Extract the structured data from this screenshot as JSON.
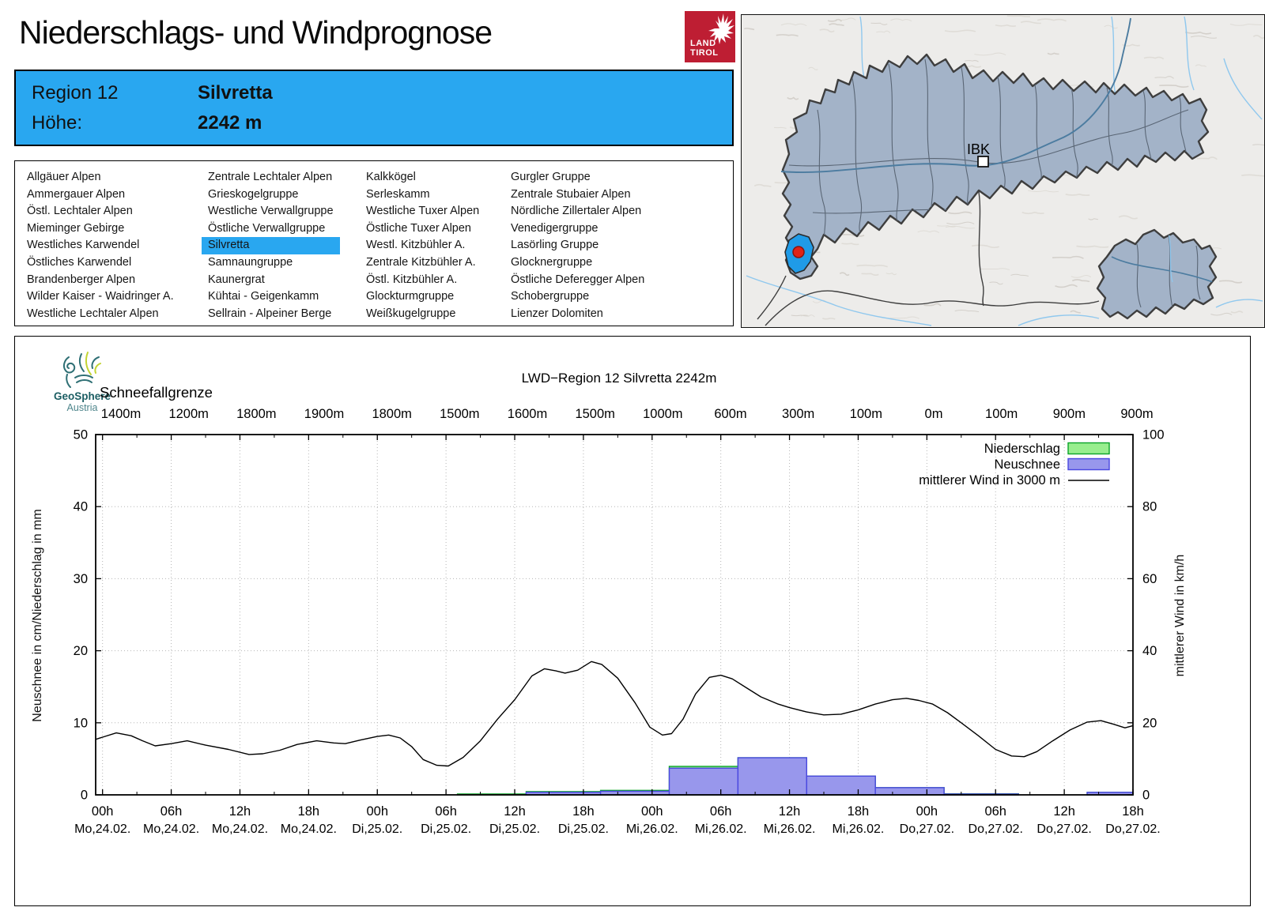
{
  "header": {
    "title": "Niederschlags- und Windprognose",
    "logo": {
      "line1": "LAND",
      "line2": "TIROL"
    }
  },
  "region_info": {
    "region_label": "Region 12",
    "region_name": "Silvretta",
    "altitude_label": "Höhe:",
    "altitude_value": "2242 m"
  },
  "region_list": {
    "selected": "Silvretta",
    "columns": [
      [
        "Allgäuer Alpen",
        "Ammergauer Alpen",
        "Östl. Lechtaler Alpen",
        "Mieminger Gebirge",
        "Westliches Karwendel",
        "Östliches Karwendel",
        "Brandenberger Alpen",
        "Wilder Kaiser - Waidringer A.",
        "Westliche Lechtaler Alpen"
      ],
      [
        "Zentrale Lechtaler Alpen",
        "Grieskogelgruppe",
        "Westliche Verwallgruppe",
        "Östliche Verwallgruppe",
        "Silvretta",
        "Samnaungruppe",
        "Kaunergrat",
        "Kühtai - Geigenkamm",
        "Sellrain - Alpeiner Berge"
      ],
      [
        "Kalkkögel",
        "Serleskamm",
        "Westliche Tuxer Alpen",
        "Östliche Tuxer Alpen",
        "Westl. Kitzbühler A.",
        "Zentrale Kitzbühler A.",
        "Östl. Kitzbühler A.",
        "Glockturmgruppe",
        "Weißkugelgruppe"
      ],
      [
        "Gurgler Gruppe",
        "Zentrale Stubaier Alpen",
        "Nördliche Zillertaler Alpen",
        "Venedigergruppe",
        "Lasörling Gruppe",
        "Glocknergruppe",
        "Östliche Deferegger Alpen",
        "Schobergruppe",
        "Lienzer Dolomiten"
      ]
    ]
  },
  "map": {
    "city_label": "IBK",
    "region_fill": "#a3b3c8",
    "highlight_color": "#1f9be8",
    "marker_color": "#e02318"
  },
  "brand": {
    "name": "GeoSphere",
    "sub": "Austria"
  },
  "chart_data": {
    "type": "mixed",
    "title": "LWD−Region 12 Silvretta 2242m",
    "x_axis": {
      "start": "Mo,24.02. 00h",
      "end": "Do,27.02. 18h",
      "domain_hours": [
        -0.6,
        90
      ],
      "tick_interval_hours": 6,
      "time_labels": [
        "00h",
        "06h",
        "12h",
        "18h",
        "00h",
        "06h",
        "12h",
        "18h",
        "00h",
        "06h",
        "12h",
        "18h",
        "00h",
        "06h",
        "12h",
        "18h"
      ],
      "date_labels": [
        "Mo,24.02.",
        "Mo,24.02.",
        "Mo,24.02.",
        "Mo,24.02.",
        "Di,25.02.",
        "Di,25.02.",
        "Di,25.02.",
        "Di,25.02.",
        "Mi,26.02.",
        "Mi,26.02.",
        "Mi,26.02.",
        "Mi,26.02.",
        "Do,27.02.",
        "Do,27.02.",
        "Do,27.02.",
        "Do,27.02."
      ]
    },
    "x2_axis": {
      "label": "Schneefallgrenze",
      "labels": [
        "1400m",
        "1200m",
        "1800m",
        "1900m",
        "1800m",
        "1500m",
        "1600m",
        "1500m",
        "1000m",
        "600m",
        "300m",
        "100m",
        "0m",
        "100m",
        "900m",
        "900m"
      ]
    },
    "y_left": {
      "label": "Neuschnee in cm/Niederschlag in mm",
      "range": [
        0,
        50
      ],
      "ticks": [
        0,
        10,
        20,
        30,
        40,
        50
      ]
    },
    "y_right": {
      "label": "mittlerer Wind in km/h",
      "range": [
        0,
        100
      ],
      "ticks": [
        0,
        20,
        40,
        60,
        80,
        100
      ]
    },
    "legend": [
      {
        "label": "Niederschlag",
        "swatch": "green-box"
      },
      {
        "label": "Neuschnee",
        "swatch": "blue-box"
      },
      {
        "label": "mittlerer Wind in 3000 m",
        "swatch": "line"
      }
    ],
    "grid": {
      "h_lines": [
        10,
        20,
        30,
        40
      ],
      "v_every_hours": 6,
      "style": "dotted"
    },
    "series": [
      {
        "name": "Niederschlag",
        "type": "bar",
        "unit": "mm",
        "axis": "left",
        "fill": "#98ee8e",
        "stroke": "#0aa428",
        "blocks": [
          [
            31,
            37,
            0.12
          ],
          [
            37,
            43.5,
            0.45
          ],
          [
            43.5,
            49.5,
            0.62
          ],
          [
            49.5,
            55.5,
            3.95
          ],
          [
            55.5,
            61.5,
            5.15
          ],
          [
            61.5,
            67.5,
            2.6
          ],
          [
            67.5,
            73.5,
            1.0
          ],
          [
            73.5,
            80,
            0.15
          ],
          [
            86,
            90,
            0.35
          ]
        ]
      },
      {
        "name": "Neuschnee",
        "type": "bar",
        "unit": "cm",
        "axis": "left",
        "fill": "#9897ec",
        "stroke": "#4a48e0",
        "blocks": [
          [
            37,
            43.5,
            0.35
          ],
          [
            43.5,
            49.5,
            0.5
          ],
          [
            49.5,
            55.5,
            3.7
          ],
          [
            55.5,
            61.5,
            5.15
          ],
          [
            61.5,
            67.5,
            2.6
          ],
          [
            67.5,
            73.5,
            1.0
          ],
          [
            73.5,
            80,
            0.12
          ],
          [
            86,
            90,
            0.35
          ]
        ]
      },
      {
        "name": "mittlerer Wind in 3000 m",
        "type": "line",
        "unit": "km/h",
        "axis": "right",
        "stroke": "#000000",
        "points": [
          [
            -0.6,
            15.4
          ],
          [
            0,
            16
          ],
          [
            1.2,
            17.2
          ],
          [
            2.5,
            16.4
          ],
          [
            3.5,
            15
          ],
          [
            4.6,
            13.6
          ],
          [
            6,
            14.2
          ],
          [
            7.4,
            15
          ],
          [
            9,
            13.8
          ],
          [
            11,
            12.6
          ],
          [
            12.8,
            11.2
          ],
          [
            14,
            11.4
          ],
          [
            15.5,
            12.4
          ],
          [
            17,
            14
          ],
          [
            18.7,
            15
          ],
          [
            20.2,
            14.4
          ],
          [
            21.2,
            14.2
          ],
          [
            22.5,
            15.2
          ],
          [
            24,
            16.2
          ],
          [
            25,
            16.6
          ],
          [
            26,
            15.8
          ],
          [
            27,
            13.4
          ],
          [
            28,
            9.8
          ],
          [
            29.2,
            8.2
          ],
          [
            30.2,
            8
          ],
          [
            31.5,
            10.4
          ],
          [
            33,
            15
          ],
          [
            34.5,
            21
          ],
          [
            36,
            26.4
          ],
          [
            37.5,
            33
          ],
          [
            38.6,
            35
          ],
          [
            39.6,
            34.4
          ],
          [
            40.4,
            33.8
          ],
          [
            41.5,
            34.6
          ],
          [
            42.7,
            37
          ],
          [
            43.6,
            36.2
          ],
          [
            45,
            32.4
          ],
          [
            46.5,
            25.6
          ],
          [
            47.8,
            18.8
          ],
          [
            48.9,
            16.6
          ],
          [
            49.7,
            17
          ],
          [
            50.7,
            21
          ],
          [
            51.8,
            28
          ],
          [
            53,
            32.6
          ],
          [
            54,
            33.2
          ],
          [
            55,
            32.2
          ],
          [
            56.2,
            29.8
          ],
          [
            57.5,
            27.2
          ],
          [
            59,
            25.2
          ],
          [
            60,
            24.2
          ],
          [
            61.5,
            23
          ],
          [
            63,
            22.2
          ],
          [
            64.5,
            22.4
          ],
          [
            66,
            23.6
          ],
          [
            67.5,
            25.2
          ],
          [
            69,
            26.4
          ],
          [
            70.2,
            26.8
          ],
          [
            71.3,
            26.2
          ],
          [
            72.5,
            25.2
          ],
          [
            73.8,
            22.8
          ],
          [
            75,
            20
          ],
          [
            76.5,
            16.4
          ],
          [
            78,
            12.6
          ],
          [
            79.4,
            10.8
          ],
          [
            80.5,
            10.6
          ],
          [
            81.6,
            12
          ],
          [
            83,
            15
          ],
          [
            84.5,
            18
          ],
          [
            86,
            20.2
          ],
          [
            87.2,
            20.6
          ],
          [
            88.3,
            19.6
          ],
          [
            89.3,
            18.6
          ],
          [
            90,
            19.2
          ]
        ]
      }
    ]
  }
}
